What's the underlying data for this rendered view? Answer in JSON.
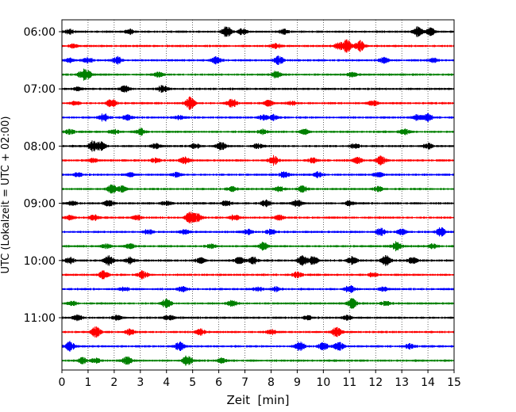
{
  "chart_data": {
    "type": "line",
    "chart_kind": "helicorder / seismogram drum plot",
    "xlabel": "Zeit  [min]",
    "ylabel": "UTC (Lokalzeit = UTC + 02:00)",
    "xlim": [
      0,
      15
    ],
    "x_ticks": [
      0,
      1,
      2,
      3,
      4,
      5,
      6,
      7,
      8,
      9,
      10,
      11,
      12,
      13,
      14,
      15
    ],
    "x_tick_labels": [
      "0",
      "1",
      "2",
      "3",
      "4",
      "5",
      "6",
      "7",
      "8",
      "9",
      "10",
      "11",
      "12",
      "13",
      "14",
      "15"
    ],
    "y_tick_labels": [
      "06:00",
      "07:00",
      "08:00",
      "09:00",
      "10:00",
      "11:00"
    ],
    "y_tick_traces": [
      0,
      4,
      8,
      12,
      16,
      20
    ],
    "trace_count": 24,
    "trace_interval_minutes": 15,
    "start_time": "06:00",
    "grid": {
      "vertical_dotted": true
    },
    "trace_colors": [
      "#000000",
      "#ff0000",
      "#0000ff",
      "#008000"
    ],
    "bursts": [
      [
        [
          0.3,
          0.5
        ],
        [
          2.6,
          0.5
        ],
        [
          6.3,
          1.2
        ],
        [
          6.9,
          0.6
        ],
        [
          8.5,
          0.5
        ],
        [
          13.6,
          1.0
        ],
        [
          14.1,
          0.8
        ]
      ],
      [
        [
          0.4,
          0.4
        ],
        [
          10.6,
          0.6
        ],
        [
          10.9,
          1.3
        ],
        [
          11.4,
          1.1
        ],
        [
          8.2,
          0.5
        ]
      ],
      [
        [
          0.3,
          0.4
        ],
        [
          1.0,
          0.6
        ],
        [
          2.1,
          0.8
        ],
        [
          5.9,
          0.7
        ],
        [
          8.3,
          0.9
        ],
        [
          12.3,
          0.6
        ],
        [
          14.2,
          0.4
        ]
      ],
      [
        [
          0.8,
          0.9
        ],
        [
          1.0,
          0.7
        ],
        [
          3.7,
          0.5
        ],
        [
          8.2,
          0.7
        ],
        [
          11.1,
          0.5
        ]
      ],
      [
        [
          0.6,
          0.3
        ],
        [
          2.4,
          0.6
        ],
        [
          3.8,
          0.4
        ],
        [
          3.9,
          0.4
        ]
      ],
      [
        [
          0.5,
          0.4
        ],
        [
          1.9,
          0.9
        ],
        [
          4.9,
          1.3
        ],
        [
          6.5,
          0.9
        ],
        [
          7.9,
          0.6
        ],
        [
          8.8,
          0.4
        ],
        [
          11.9,
          0.6
        ]
      ],
      [
        [
          1.6,
          0.8
        ],
        [
          2.5,
          0.5
        ],
        [
          4.5,
          0.4
        ],
        [
          7.7,
          0.5
        ],
        [
          8.1,
          0.6
        ],
        [
          13.6,
          0.6
        ],
        [
          14.0,
          0.7
        ]
      ],
      [
        [
          0.3,
          0.5
        ],
        [
          2.0,
          0.5
        ],
        [
          3.0,
          0.7
        ],
        [
          7.7,
          0.5
        ],
        [
          9.3,
          0.5
        ],
        [
          13.1,
          0.6
        ]
      ],
      [
        [
          1.2,
          1.2
        ],
        [
          1.5,
          0.8
        ],
        [
          3.6,
          0.5
        ],
        [
          5.1,
          0.5
        ],
        [
          6.1,
          0.8
        ],
        [
          7.5,
          0.5
        ],
        [
          11.2,
          0.5
        ],
        [
          14.0,
          0.6
        ]
      ],
      [
        [
          1.2,
          0.4
        ],
        [
          3.6,
          0.5
        ],
        [
          4.7,
          0.7
        ],
        [
          8.1,
          1.0
        ],
        [
          9.6,
          0.5
        ],
        [
          11.3,
          0.6
        ],
        [
          12.2,
          0.9
        ]
      ],
      [
        [
          0.6,
          0.4
        ],
        [
          2.6,
          0.4
        ],
        [
          4.4,
          0.5
        ],
        [
          8.5,
          0.7
        ],
        [
          9.8,
          0.6
        ],
        [
          12.1,
          0.5
        ]
      ],
      [
        [
          1.9,
          0.9
        ],
        [
          2.3,
          0.6
        ],
        [
          6.5,
          0.5
        ],
        [
          8.3,
          0.5
        ],
        [
          9.2,
          0.6
        ],
        [
          12.1,
          0.5
        ]
      ],
      [
        [
          0.4,
          0.4
        ],
        [
          1.8,
          0.6
        ],
        [
          4.0,
          0.5
        ],
        [
          6.3,
          0.6
        ],
        [
          7.8,
          0.7
        ],
        [
          9.0,
          0.7
        ],
        [
          11.0,
          0.5
        ]
      ],
      [
        [
          0.3,
          0.4
        ],
        [
          1.2,
          0.6
        ],
        [
          2.9,
          0.5
        ],
        [
          4.9,
          1.1
        ],
        [
          5.2,
          0.8
        ],
        [
          6.6,
          0.6
        ],
        [
          8.3,
          0.5
        ]
      ],
      [
        [
          3.3,
          0.5
        ],
        [
          4.7,
          0.5
        ],
        [
          7.1,
          0.5
        ],
        [
          8.0,
          0.6
        ],
        [
          12.2,
          0.8
        ],
        [
          13.0,
          0.6
        ],
        [
          14.5,
          0.9
        ]
      ],
      [
        [
          1.7,
          0.4
        ],
        [
          2.6,
          0.5
        ],
        [
          5.7,
          0.4
        ],
        [
          7.7,
          0.8
        ],
        [
          12.8,
          1.0
        ],
        [
          14.2,
          0.5
        ]
      ],
      [
        [
          0.3,
          0.6
        ],
        [
          1.8,
          1.0
        ],
        [
          2.6,
          0.7
        ],
        [
          5.3,
          0.6
        ],
        [
          6.8,
          0.7
        ],
        [
          7.3,
          0.8
        ],
        [
          9.2,
          1.1
        ],
        [
          9.6,
          0.9
        ],
        [
          11.1,
          0.8
        ],
        [
          12.4,
          1.1
        ],
        [
          13.4,
          0.7
        ]
      ],
      [
        [
          1.6,
          0.9
        ],
        [
          3.1,
          0.8
        ],
        [
          9.0,
          0.6
        ],
        [
          11.9,
          0.4
        ]
      ],
      [
        [
          2.4,
          0.4
        ],
        [
          4.6,
          0.5
        ],
        [
          7.5,
          0.5
        ],
        [
          8.2,
          0.5
        ],
        [
          11.0,
          0.8
        ],
        [
          12.3,
          0.4
        ]
      ],
      [
        [
          0.4,
          0.4
        ],
        [
          4.0,
          0.9
        ],
        [
          6.5,
          0.6
        ],
        [
          11.1,
          1.0
        ],
        [
          12.4,
          0.5
        ]
      ],
      [
        [
          0.6,
          0.5
        ],
        [
          2.1,
          0.5
        ],
        [
          4.1,
          0.6
        ],
        [
          9.4,
          0.4
        ],
        [
          10.9,
          0.5
        ]
      ],
      [
        [
          1.3,
          1.1
        ],
        [
          2.6,
          0.6
        ],
        [
          5.3,
          0.6
        ],
        [
          8.0,
          0.5
        ],
        [
          10.5,
          1.1
        ]
      ],
      [
        [
          0.3,
          1.0
        ],
        [
          4.5,
          0.9
        ],
        [
          9.1,
          0.9
        ],
        [
          10.0,
          0.8
        ],
        [
          10.6,
          0.9
        ],
        [
          13.3,
          0.5
        ]
      ],
      [
        [
          0.8,
          0.6
        ],
        [
          1.3,
          0.5
        ],
        [
          2.5,
          0.8
        ],
        [
          4.8,
          1.1
        ],
        [
          6.1,
          0.5
        ]
      ]
    ]
  }
}
